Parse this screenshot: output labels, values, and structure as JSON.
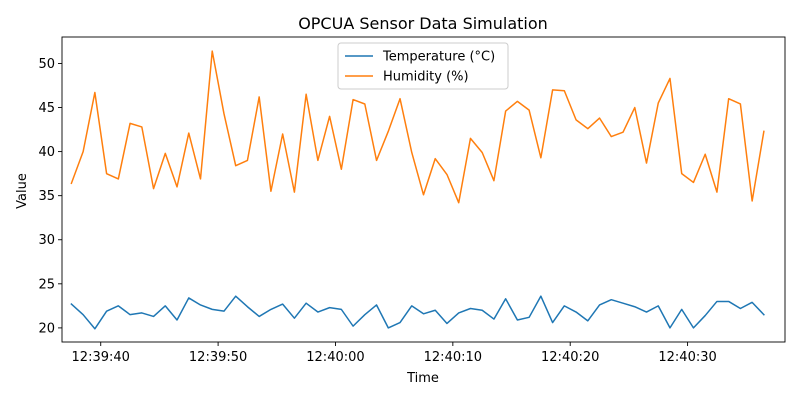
{
  "chart_data": {
    "type": "line",
    "title": "OPCUA Sensor Data Simulation",
    "xlabel": "Time",
    "ylabel": "Value",
    "ylim": [
      18.4,
      53.0
    ],
    "xlim": [
      "12:39:36.70",
      "12:40:38.30"
    ],
    "x_ticks": [
      "12:39:40",
      "12:39:50",
      "12:40:00",
      "12:40:10",
      "12:40:20",
      "12:40:30"
    ],
    "y_ticks": [
      20,
      25,
      30,
      35,
      40,
      45,
      50
    ],
    "grid": false,
    "legend_position": "upper-center",
    "x": [
      "12:39:37.5",
      "12:39:38.5",
      "12:39:39.5",
      "12:39:40.5",
      "12:39:41.5",
      "12:39:42.5",
      "12:39:43.5",
      "12:39:44.5",
      "12:39:45.5",
      "12:39:46.5",
      "12:39:47.5",
      "12:39:48.5",
      "12:39:49.5",
      "12:39:50.5",
      "12:39:51.5",
      "12:39:52.5",
      "12:39:53.5",
      "12:39:54.5",
      "12:39:55.5",
      "12:39:56.5",
      "12:39:57.5",
      "12:39:58.5",
      "12:39:59.5",
      "12:40:00.5",
      "12:40:01.5",
      "12:40:02.5",
      "12:40:03.5",
      "12:40:04.5",
      "12:40:05.5",
      "12:40:06.5",
      "12:40:07.5",
      "12:40:08.5",
      "12:40:09.5",
      "12:40:10.5",
      "12:40:11.5",
      "12:40:12.5",
      "12:40:13.5",
      "12:40:14.5",
      "12:40:15.5",
      "12:40:16.5",
      "12:40:17.5",
      "12:40:18.5",
      "12:40:19.5",
      "12:40:20.5",
      "12:40:21.5",
      "12:40:22.5",
      "12:40:23.5",
      "12:40:24.5",
      "12:40:25.5",
      "12:40:26.5",
      "12:40:27.5",
      "12:40:28.5",
      "12:40:29.5",
      "12:40:30.5",
      "12:40:31.5",
      "12:40:32.5",
      "12:40:33.5",
      "12:40:34.5",
      "12:40:35.5",
      "12:40:36.5"
    ],
    "series": [
      {
        "name": "Temperature (°C)",
        "color": "#1f77b4",
        "values": [
          22.7,
          21.5,
          19.9,
          21.9,
          22.5,
          21.5,
          21.7,
          21.3,
          22.5,
          20.9,
          23.4,
          22.6,
          22.1,
          21.9,
          23.6,
          22.4,
          21.3,
          22.1,
          22.7,
          21.1,
          22.8,
          21.8,
          22.3,
          22.1,
          20.2,
          21.5,
          22.6,
          20.0,
          20.6,
          22.5,
          21.6,
          22.0,
          20.5,
          21.7,
          22.2,
          22.0,
          21.0,
          23.3,
          20.9,
          21.2,
          23.6,
          20.6,
          22.5,
          21.8,
          20.8,
          22.6,
          23.2,
          22.8,
          22.4,
          21.8,
          22.5,
          20.0,
          22.1,
          20.0,
          21.4,
          23.0,
          23.0,
          22.2,
          22.9,
          21.5
        ]
      },
      {
        "name": "Humidity (%)",
        "color": "#ff7f0e",
        "values": [
          36.4,
          40.0,
          46.7,
          37.5,
          36.9,
          43.2,
          42.8,
          35.8,
          39.8,
          36.0,
          42.1,
          36.9,
          51.4,
          44.3,
          38.4,
          39.0,
          46.2,
          35.5,
          42.0,
          35.4,
          46.5,
          39.0,
          44.0,
          38.0,
          45.9,
          45.4,
          39.0,
          42.3,
          46.0,
          39.9,
          35.1,
          39.2,
          37.4,
          34.2,
          41.5,
          39.9,
          36.7,
          44.6,
          45.7,
          44.7,
          39.3,
          47.0,
          46.9,
          43.6,
          42.6,
          43.8,
          41.7,
          42.2,
          45.0,
          38.7,
          45.5,
          48.3,
          37.5,
          36.5,
          39.7,
          35.4,
          46.0,
          45.4,
          34.4,
          42.3
        ]
      }
    ]
  }
}
